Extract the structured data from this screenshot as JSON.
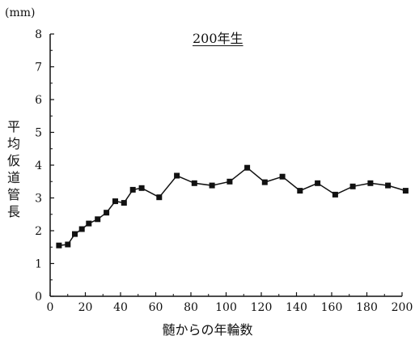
{
  "chart_data": {
    "type": "line",
    "title": "200年生",
    "unit_label": "(mm)",
    "xlabel": "髄からの年輪数",
    "ylabel": "平均仮道管長",
    "xlim": [
      0,
      200
    ],
    "ylim": [
      0,
      8
    ],
    "x_ticks": [
      "0",
      "20",
      "40",
      "60",
      "80",
      "100",
      "120",
      "140",
      "160",
      "180",
      "200"
    ],
    "y_ticks": [
      "0",
      "1",
      "2",
      "3",
      "4",
      "5",
      "6",
      "7",
      "8"
    ],
    "grid": false,
    "marker": "square",
    "series": [
      {
        "x": [
          5,
          10,
          14,
          18,
          22,
          27,
          32,
          37,
          42,
          47,
          52,
          62,
          72,
          82,
          92,
          102,
          112,
          122,
          132,
          142,
          152,
          162,
          172,
          182,
          192,
          202
        ],
        "y": [
          1.55,
          1.58,
          1.9,
          2.05,
          2.22,
          2.35,
          2.55,
          2.9,
          2.85,
          3.25,
          3.3,
          3.02,
          3.68,
          3.45,
          3.38,
          3.5,
          3.92,
          3.48,
          3.65,
          3.22,
          3.45,
          3.1,
          3.35,
          3.45,
          3.38,
          3.22
        ]
      }
    ]
  }
}
